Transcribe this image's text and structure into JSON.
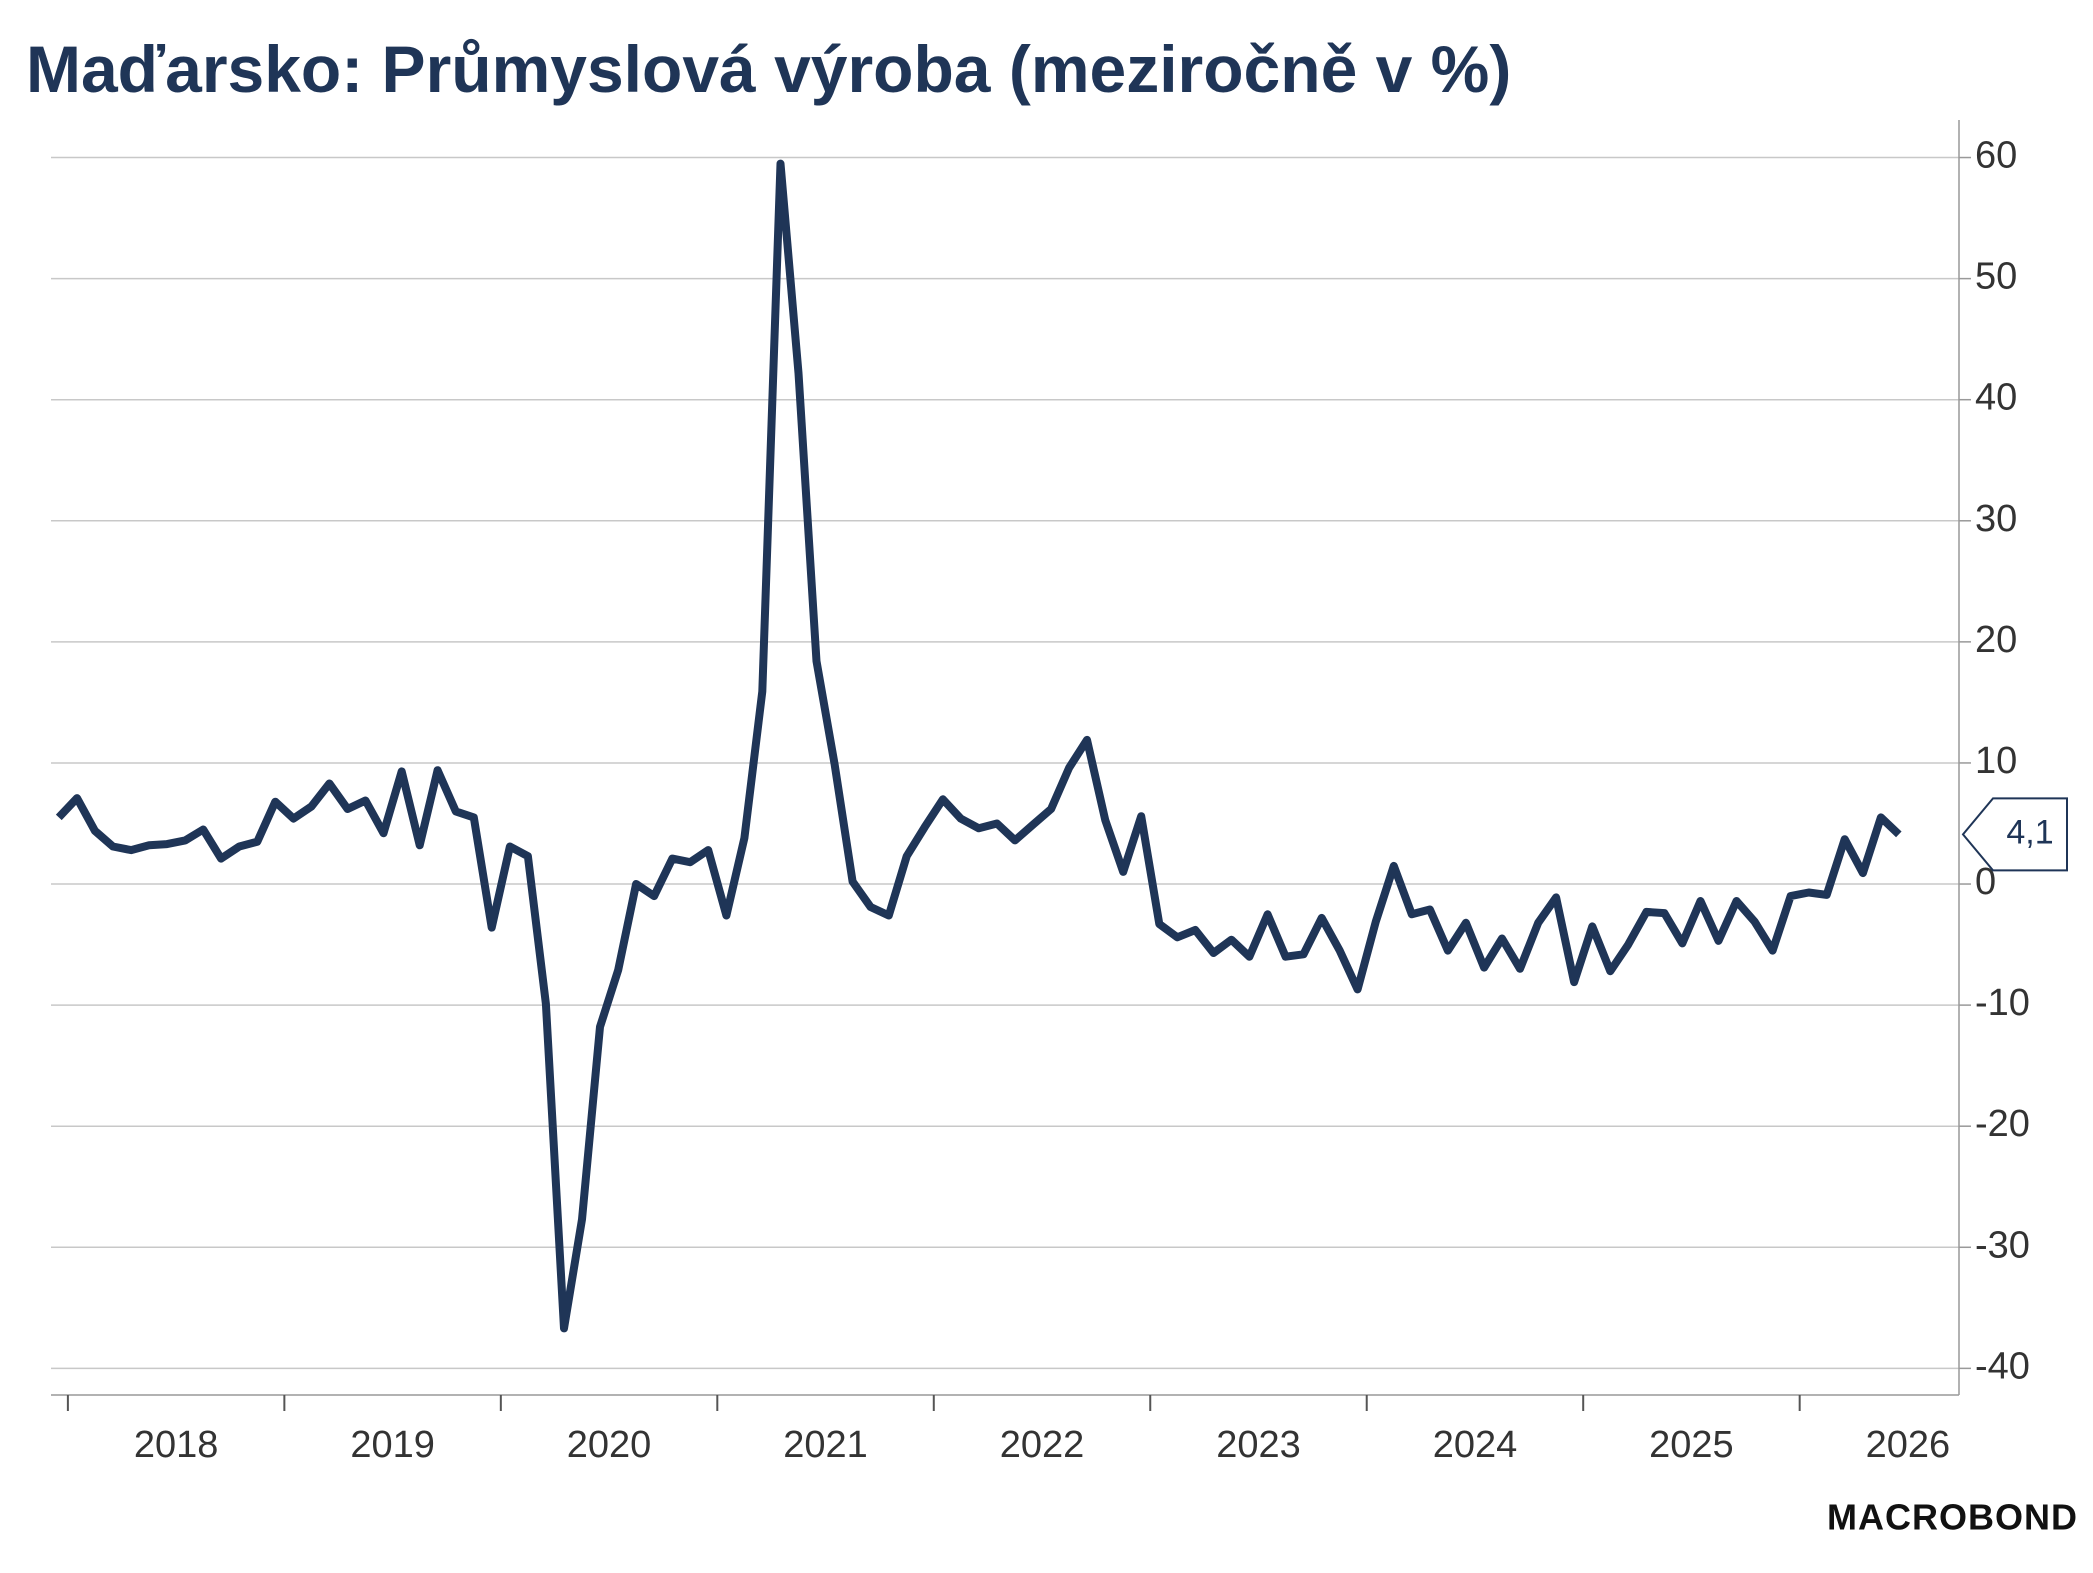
{
  "chart_data": {
    "type": "line",
    "title": "Maďarsko: Průmyslová výroba (meziročně v %)",
    "source": "MACROBOND",
    "x": [
      2017.958,
      2018.042,
      2018.125,
      2018.208,
      2018.292,
      2018.375,
      2018.458,
      2018.542,
      2018.625,
      2018.708,
      2018.792,
      2018.875,
      2018.958,
      2019.042,
      2019.125,
      2019.208,
      2019.292,
      2019.375,
      2019.458,
      2019.542,
      2019.625,
      2019.708,
      2019.792,
      2019.875,
      2019.958,
      2020.042,
      2020.125,
      2020.208,
      2020.292,
      2020.375,
      2020.458,
      2020.542,
      2020.625,
      2020.708,
      2020.792,
      2020.875,
      2020.958,
      2021.042,
      2021.125,
      2021.208,
      2021.292,
      2021.375,
      2021.458,
      2021.542,
      2021.625,
      2021.708,
      2021.792,
      2021.875,
      2021.958,
      2022.042,
      2022.125,
      2022.208,
      2022.292,
      2022.375,
      2022.458,
      2022.542,
      2022.625,
      2022.708,
      2022.792,
      2022.875,
      2022.958,
      2023.042,
      2023.125,
      2023.208,
      2023.292,
      2023.375,
      2023.458,
      2023.542,
      2023.625,
      2023.708,
      2023.792,
      2023.875,
      2023.958,
      2024.042,
      2024.125,
      2024.208,
      2024.292,
      2024.375,
      2024.458,
      2024.542,
      2024.625,
      2024.708,
      2024.792,
      2024.875,
      2024.958,
      2025.042,
      2025.125,
      2025.208,
      2025.292,
      2025.375,
      2025.458,
      2025.542,
      2025.625,
      2025.708,
      2025.792,
      2025.875,
      2025.958,
      2026.042,
      2026.125,
      2026.208,
      2026.292,
      2026.375,
      2026.458
    ],
    "series": [
      {
        "name": "Průmyslová výroba",
        "color": "#1f3557",
        "values": [
          5.5,
          7.1,
          4.4,
          3.1,
          2.8,
          3.2,
          3.3,
          3.6,
          4.5,
          2.1,
          3.1,
          3.5,
          6.8,
          5.4,
          6.4,
          8.3,
          6.2,
          6.9,
          4.2,
          9.3,
          3.2,
          9.4,
          6.0,
          5.5,
          -3.6,
          3.1,
          2.3,
          -9.9,
          -36.7,
          -27.7,
          -11.8,
          -7.1,
          0.0,
          -1.0,
          2.1,
          1.8,
          2.8,
          -2.6,
          3.8,
          15.9,
          59.5,
          42.2,
          18.4,
          9.9,
          0.2,
          -1.9,
          -2.6,
          2.3,
          4.7,
          7.0,
          5.4,
          4.6,
          5.0,
          3.6,
          4.9,
          6.2,
          9.6,
          11.9,
          5.3,
          1.0,
          5.6,
          -3.3,
          -4.4,
          -3.8,
          -5.7,
          -4.6,
          -6.0,
          -2.5,
          -6.0,
          -5.8,
          -2.8,
          -5.5,
          -8.7,
          -3.1,
          1.5,
          -2.5,
          -2.1,
          -5.5,
          -3.2,
          -6.9,
          -4.5,
          -7.0,
          -3.2,
          -1.1,
          -8.1,
          -3.5,
          -7.2,
          -5.0,
          -2.3,
          -2.4,
          -4.9,
          -1.4,
          -4.7,
          -1.4,
          -3.1,
          -5.5,
          -1.0,
          -0.7,
          -0.9,
          3.7,
          0.9,
          5.5,
          4.1
        ],
        "end_label": "4,1"
      }
    ],
    "xlim": [
      2017.922,
      2026.736
    ],
    "xticks": [
      2018,
      2019,
      2020,
      2021,
      2022,
      2023,
      2024,
      2025,
      2026
    ],
    "ylim": [
      -42.2,
      63.1
    ],
    "yticks": [
      -40,
      -30,
      -20,
      -10,
      0,
      10,
      20,
      30,
      40,
      50,
      60
    ],
    "grid": true
  }
}
